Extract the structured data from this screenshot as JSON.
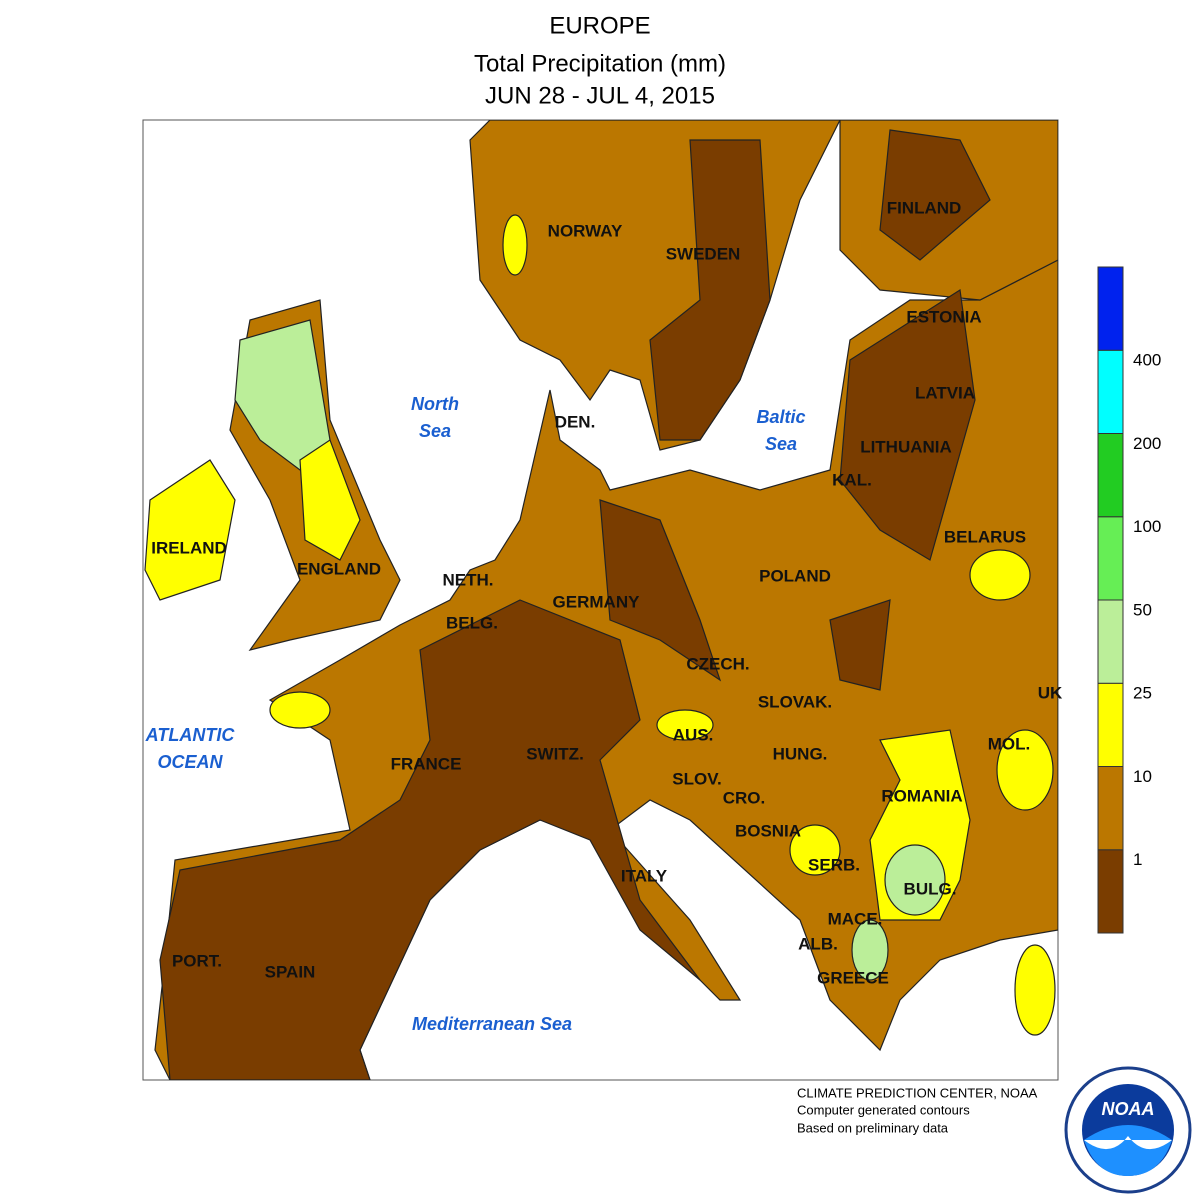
{
  "header": {
    "title": "EUROPE",
    "subtitle": "Total Precipitation (mm)",
    "period": "JUN 28 - JUL 4, 2015"
  },
  "countries": [
    "NORWAY",
    "SWEDEN",
    "FINLAND",
    "ESTONIA",
    "LATVIA",
    "LITHUANIA",
    "DEN.",
    "KAL.",
    "BELARUS",
    "IRELAND",
    "ENGLAND",
    "NETH.",
    "POLAND",
    "GERMANY",
    "BELG.",
    "CZECH.",
    "UK",
    "SLOVAK.",
    "AUS.",
    "MOL.",
    "HUNG.",
    "SWITZ.",
    "FRANCE",
    "SLOV.",
    "CRO.",
    "ROMANIA",
    "BOSNIA",
    "SERB.",
    "ITALY",
    "BULG.",
    "MACE.",
    "ALB.",
    "PORT.",
    "SPAIN",
    "GREECE"
  ],
  "seas": [
    [
      "North",
      "Sea"
    ],
    [
      "Baltic",
      "Sea"
    ],
    [
      "ATLANTIC",
      "OCEAN"
    ],
    [
      "Mediterranean Sea"
    ]
  ],
  "legend": {
    "colors": [
      "#7a3d00",
      "#bb7700",
      "#ffff00",
      "#bbee99",
      "#66ee55",
      "#22cc22",
      "#00ffff",
      "#0022ee"
    ],
    "labels": [
      1,
      10,
      25,
      50,
      100,
      200,
      400
    ]
  },
  "footer": [
    "CLIMATE PREDICTION CENTER, NOAA",
    "Computer generated contours",
    "Based on preliminary data"
  ],
  "logo": "NOAA"
}
